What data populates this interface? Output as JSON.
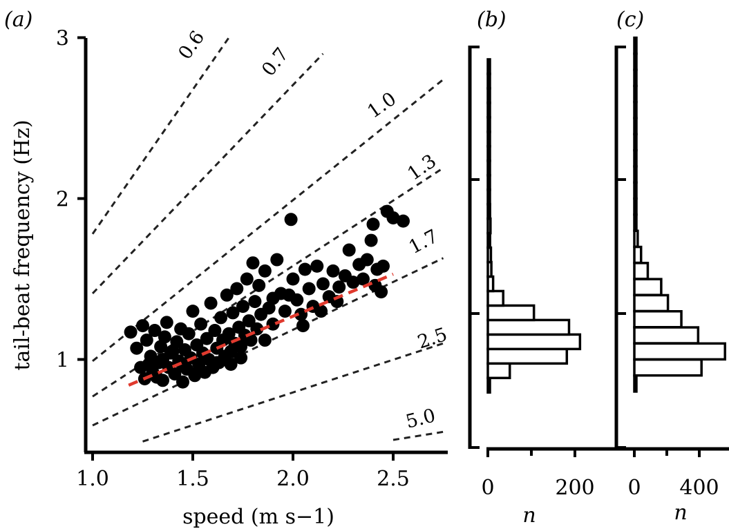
{
  "colors": {
    "points": "#000000",
    "fit": "#e03a2e",
    "reference": "#222222"
  },
  "chart_data": [
    {
      "panel": "(a)",
      "type": "scatter",
      "xlabel": "speed (m s−1)",
      "ylabel": "tail-beat frequency (Hz)",
      "xlim": [
        0.97,
        2.75
      ],
      "ylim": [
        0.55,
        3.0
      ],
      "xticks": [
        "1.0",
        "1.5",
        "2.0",
        "2.5"
      ],
      "yticks": [
        "1",
        "2",
        "3"
      ],
      "reference_lines": [
        {
          "label": "0.6",
          "x": [
            1.0,
            1.68
          ],
          "y": [
            1.78,
            3.0
          ]
        },
        {
          "label": "0.7",
          "x": [
            1.0,
            2.15
          ],
          "y": [
            1.41,
            2.9
          ]
        },
        {
          "label": "1.0",
          "x": [
            1.0,
            2.75
          ],
          "y": [
            0.99,
            2.74
          ]
        },
        {
          "label": "1.3",
          "x": [
            1.0,
            2.75
          ],
          "y": [
            0.77,
            2.19
          ]
        },
        {
          "label": "1.7",
          "x": [
            1.0,
            2.75
          ],
          "y": [
            0.59,
            1.63
          ]
        },
        {
          "label": "2.5",
          "x": [
            1.25,
            2.75
          ],
          "y": [
            0.49,
            1.1
          ]
        },
        {
          "label": "5.0",
          "x": [
            2.5,
            2.75
          ],
          "y": [
            0.5,
            0.55
          ]
        }
      ],
      "fit": {
        "x": [
          1.18,
          2.5
        ],
        "y": [
          0.84,
          1.53
        ]
      },
      "series": [
        {
          "points": [
            [
              1.19,
              1.17
            ],
            [
              1.22,
              1.07
            ],
            [
              1.24,
              0.95
            ],
            [
              1.25,
              1.21
            ],
            [
              1.26,
              0.88
            ],
            [
              1.27,
              1.12
            ],
            [
              1.29,
              1.02
            ],
            [
              1.3,
              0.92
            ],
            [
              1.31,
              1.18
            ],
            [
              1.33,
              0.98
            ],
            [
              1.34,
              1.08
            ],
            [
              1.35,
              0.87
            ],
            [
              1.36,
              1.14
            ],
            [
              1.37,
              1.23
            ],
            [
              1.38,
              0.95
            ],
            [
              1.39,
              1.04
            ],
            [
              1.41,
              0.91
            ],
            [
              1.42,
              1.11
            ],
            [
              1.43,
              0.99
            ],
            [
              1.44,
              1.19
            ],
            [
              1.45,
              0.86
            ],
            [
              1.46,
              1.06
            ],
            [
              1.47,
              0.94
            ],
            [
              1.48,
              1.16
            ],
            [
              1.49,
              1.01
            ],
            [
              1.5,
              1.3
            ],
            [
              1.51,
              0.9
            ],
            [
              1.52,
              1.09
            ],
            [
              1.53,
              0.97
            ],
            [
              1.54,
              1.22
            ],
            [
              1.55,
              1.04
            ],
            [
              1.56,
              0.92
            ],
            [
              1.57,
              1.13
            ],
            [
              1.58,
              1.0
            ],
            [
              1.59,
              1.35
            ],
            [
              1.6,
              0.95
            ],
            [
              1.61,
              1.18
            ],
            [
              1.62,
              1.07
            ],
            [
              1.63,
              0.98
            ],
            [
              1.64,
              1.26
            ],
            [
              1.65,
              1.12
            ],
            [
              1.66,
              1.02
            ],
            [
              1.67,
              1.4
            ],
            [
              1.68,
              1.16
            ],
            [
              1.69,
              1.05
            ],
            [
              1.7,
              1.29
            ],
            [
              1.71,
              1.1
            ],
            [
              1.72,
              1.44
            ],
            [
              1.73,
              1.2
            ],
            [
              1.74,
              1.08
            ],
            [
              1.75,
              1.33
            ],
            [
              1.76,
              1.15
            ],
            [
              1.77,
              1.5
            ],
            [
              1.78,
              1.24
            ],
            [
              1.79,
              1.12
            ],
            [
              1.8,
              1.6
            ],
            [
              1.81,
              1.36
            ],
            [
              1.82,
              1.19
            ],
            [
              1.83,
              1.46
            ],
            [
              1.84,
              1.28
            ],
            [
              1.86,
              1.55
            ],
            [
              1.88,
              1.32
            ],
            [
              1.9,
              1.22
            ],
            [
              1.92,
              1.62
            ],
            [
              1.94,
              1.41
            ],
            [
              1.96,
              1.3
            ],
            [
              1.99,
              1.87
            ],
            [
              2.0,
              1.5
            ],
            [
              2.02,
              1.37
            ],
            [
              2.04,
              1.28
            ],
            [
              2.06,
              1.56
            ],
            [
              2.08,
              1.44
            ],
            [
              2.1,
              1.33
            ],
            [
              2.12,
              1.58
            ],
            [
              2.15,
              1.47
            ],
            [
              2.18,
              1.39
            ],
            [
              2.2,
              1.55
            ],
            [
              2.23,
              1.45
            ],
            [
              2.26,
              1.52
            ],
            [
              2.28,
              1.68
            ],
            [
              2.3,
              1.48
            ],
            [
              2.33,
              1.59
            ],
            [
              2.35,
              1.5
            ],
            [
              2.37,
              1.62
            ],
            [
              2.39,
              1.74
            ],
            [
              2.4,
              1.84
            ],
            [
              2.41,
              1.46
            ],
            [
              2.42,
              1.56
            ],
            [
              2.44,
              1.42
            ],
            [
              2.45,
              1.58
            ],
            [
              2.47,
              1.92
            ],
            [
              2.5,
              1.88
            ],
            [
              2.55,
              1.86
            ],
            [
              1.69,
              0.97
            ],
            [
              1.74,
              1.01
            ],
            [
              1.86,
              1.12
            ],
            [
              1.9,
              1.38
            ],
            [
              1.98,
              1.4
            ],
            [
              2.05,
              1.21
            ],
            [
              2.14,
              1.3
            ],
            [
              2.22,
              1.36
            ],
            [
              1.35,
              1.0
            ],
            [
              1.45,
              0.96
            ],
            [
              1.53,
              0.93
            ],
            [
              1.62,
              0.98
            ],
            [
              1.28,
              0.97
            ],
            [
              1.4,
              1.05
            ],
            [
              1.32,
              0.89
            ]
          ]
        }
      ]
    },
    {
      "panel": "(b)",
      "type": "bar",
      "orientation": "horizontal",
      "xlabel": "n",
      "xticks": [
        "0",
        "200"
      ],
      "bins": [
        {
          "y": 0.84,
          "n": 4
        },
        {
          "y": 0.93,
          "n": 50
        },
        {
          "y": 1.02,
          "n": 180
        },
        {
          "y": 1.11,
          "n": 210
        },
        {
          "y": 1.2,
          "n": 185
        },
        {
          "y": 1.29,
          "n": 105
        },
        {
          "y": 1.38,
          "n": 35
        },
        {
          "y": 1.47,
          "n": 12
        },
        {
          "y": 1.56,
          "n": 8
        },
        {
          "y": 1.65,
          "n": 7
        },
        {
          "y": 1.74,
          "n": 5
        },
        {
          "y": 1.83,
          "n": 6
        },
        {
          "y": 1.92,
          "n": 5
        },
        {
          "y": 2.01,
          "n": 3
        },
        {
          "y": 2.1,
          "n": 2
        },
        {
          "y": 2.19,
          "n": 2
        },
        {
          "y": 2.28,
          "n": 2
        },
        {
          "y": 2.37,
          "n": 2
        },
        {
          "y": 2.46,
          "n": 2
        },
        {
          "y": 2.55,
          "n": 2
        },
        {
          "y": 2.64,
          "n": 2
        },
        {
          "y": 2.73,
          "n": 2
        },
        {
          "y": 2.82,
          "n": 2
        }
      ]
    },
    {
      "panel": "(c)",
      "type": "bar",
      "orientation": "horizontal",
      "xlabel": "n",
      "xticks": [
        "0",
        "400"
      ],
      "bins": [
        {
          "y": 0.85,
          "n": 10
        },
        {
          "y": 0.95,
          "n": 400
        },
        {
          "y": 1.05,
          "n": 540
        },
        {
          "y": 1.15,
          "n": 380
        },
        {
          "y": 1.25,
          "n": 280
        },
        {
          "y": 1.35,
          "n": 200
        },
        {
          "y": 1.45,
          "n": 160
        },
        {
          "y": 1.55,
          "n": 80
        },
        {
          "y": 1.65,
          "n": 40
        },
        {
          "y": 1.75,
          "n": 20
        },
        {
          "y": 1.85,
          "n": 10
        },
        {
          "y": 1.95,
          "n": 8
        },
        {
          "y": 2.05,
          "n": 5
        },
        {
          "y": 2.15,
          "n": 4
        },
        {
          "y": 2.25,
          "n": 4
        },
        {
          "y": 2.35,
          "n": 4
        },
        {
          "y": 2.45,
          "n": 4
        },
        {
          "y": 2.55,
          "n": 4
        },
        {
          "y": 2.65,
          "n": 4
        },
        {
          "y": 2.75,
          "n": 4
        },
        {
          "y": 2.85,
          "n": 4
        },
        {
          "y": 2.95,
          "n": 4
        }
      ]
    }
  ]
}
